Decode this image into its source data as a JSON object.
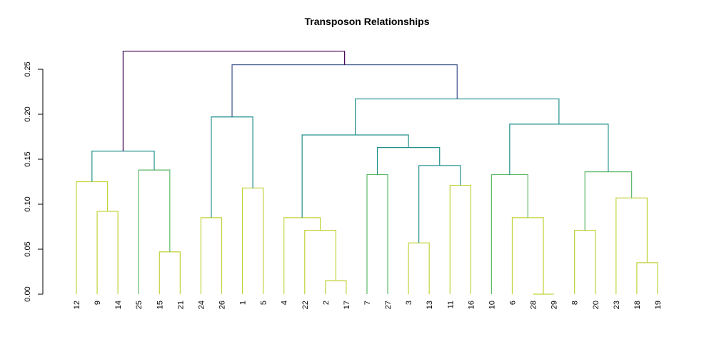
{
  "chart_data": {
    "type": "dendrogram",
    "title": "Transposon Relationships",
    "xlabel": "",
    "ylabel": "",
    "ylim": [
      0,
      0.27
    ],
    "yticks": [
      "0.00",
      "0.05",
      "0.10",
      "0.15",
      "0.20",
      "0.25"
    ],
    "grid": false,
    "leaf_order": [
      "12",
      "9",
      "14",
      "25",
      "15",
      "21",
      "24",
      "26",
      "1",
      "5",
      "4",
      "22",
      "2",
      "17",
      "7",
      "27",
      "3",
      "13",
      "11",
      "16",
      "10",
      "6",
      "28",
      "29",
      "8",
      "20",
      "23",
      "18",
      "19"
    ],
    "merges": [
      {
        "a": "2",
        "b": "17",
        "height": 0.015
      },
      {
        "a": "15",
        "b": "21",
        "height": 0.047
      },
      {
        "a": "3",
        "b": "13",
        "height": 0.057
      },
      {
        "a": "28",
        "b": "29",
        "height": 0.0
      },
      {
        "a": "6",
        "b": "28-29",
        "height": 0.085
      },
      {
        "a": "8",
        "b": "20",
        "height": 0.071
      },
      {
        "a": "18",
        "b": "19",
        "height": 0.035
      },
      {
        "a": "22",
        "b": "2-17",
        "height": 0.071
      },
      {
        "a": "4",
        "b": "22-2-17",
        "height": 0.085
      },
      {
        "a": "24",
        "b": "26",
        "height": 0.085
      },
      {
        "a": "9",
        "b": "14",
        "height": 0.092
      },
      {
        "a": "23",
        "b": "18-19",
        "height": 0.107
      },
      {
        "a": "1",
        "b": "5",
        "height": 0.118
      },
      {
        "a": "11",
        "b": "16",
        "height": 0.121
      },
      {
        "a": "12",
        "b": "9-14",
        "height": 0.125
      },
      {
        "a": "7",
        "b": "27",
        "height": 0.133
      },
      {
        "a": "10",
        "b": "6-28-29",
        "height": 0.133
      },
      {
        "a": "8-20",
        "b": "23-18-19",
        "height": 0.136
      },
      {
        "a": "25",
        "b": "15-21",
        "height": 0.138
      },
      {
        "a": "3-13",
        "b": "11-16",
        "height": 0.143
      },
      {
        "a": "12-9-14",
        "b": "25-15-21",
        "height": 0.159
      },
      {
        "a": "7-27",
        "b": "3-13-11-16",
        "height": 0.163
      },
      {
        "a": "4-22-2-17",
        "b": "7-27-3-13-11-16",
        "height": 0.177
      },
      {
        "a": "10-6-28-29",
        "b": "8-20-23-18-19",
        "height": 0.189
      },
      {
        "a": "24-26",
        "b": "1-5",
        "height": 0.197
      },
      {
        "a": "4-..-16",
        "b": "10-..-19",
        "height": 0.217
      },
      {
        "a": "24-26-1-5",
        "b": "4-..-19",
        "height": 0.255
      },
      {
        "a": "12-..-21",
        "b": "24-..-19",
        "height": 0.27
      }
    ],
    "colors": {
      "low": "#c2d23a",
      "mid": "#5db969",
      "high": "#21908d",
      "top": "#3b528b",
      "root": "#440154"
    }
  }
}
